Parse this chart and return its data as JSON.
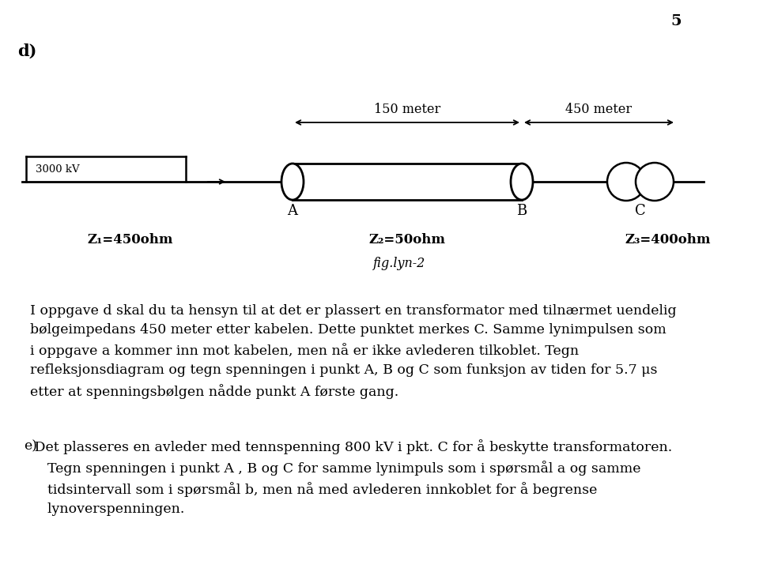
{
  "page_number": "5",
  "label_d": "d)",
  "label_e": "e)",
  "voltage_label": "3000 kV",
  "dist1_label": "150 meter",
  "dist2_label": "450 meter",
  "point_A": "A",
  "point_B": "B",
  "point_C": "C",
  "Z1_label": "Z₁=450ohm",
  "Z2_label": "Z₂=50ohm",
  "Z3_label": "Z₃=400ohm",
  "fig_label": "fig.lyn-2",
  "text_d": "I oppgave d skal du ta hensyn til at det er plassert en transformator med tilnærmet uendelig\nbølgeimpedans 450 meter etter kabelen. Dette punktet merkes C. Samme lynimpulsen som\ni oppgave a kommer inn mot kabelen, men nå er ikke avlederen tilkoblet. Tegn\nrefleksjonsdiagram og tegn spenningen i punkt A, B og C som funksjon av tiden for 5.7 μs\netter at spenningsbølgen nådde punkt A første gang.",
  "text_e_intro": "e)",
  "text_e_body": " Det plasseres en avleder med tennspenning 800 kV i pkt. C for å beskytte transformatoren.\n    Tegn spenningen i punkt A , B og C for samme lynimpuls som i spørsmål a og samme\n    tidsintervall som i spørsmål b, men nå med avlederen innkoblet for å begrense\n    lynoverspenningen.",
  "bg_color": "#ffffff",
  "text_color": "#000000",
  "line_color": "#000000",
  "font_size_main": 12.5,
  "font_size_labels": 12,
  "font_size_page": 14,
  "font_size_d_label": 15
}
